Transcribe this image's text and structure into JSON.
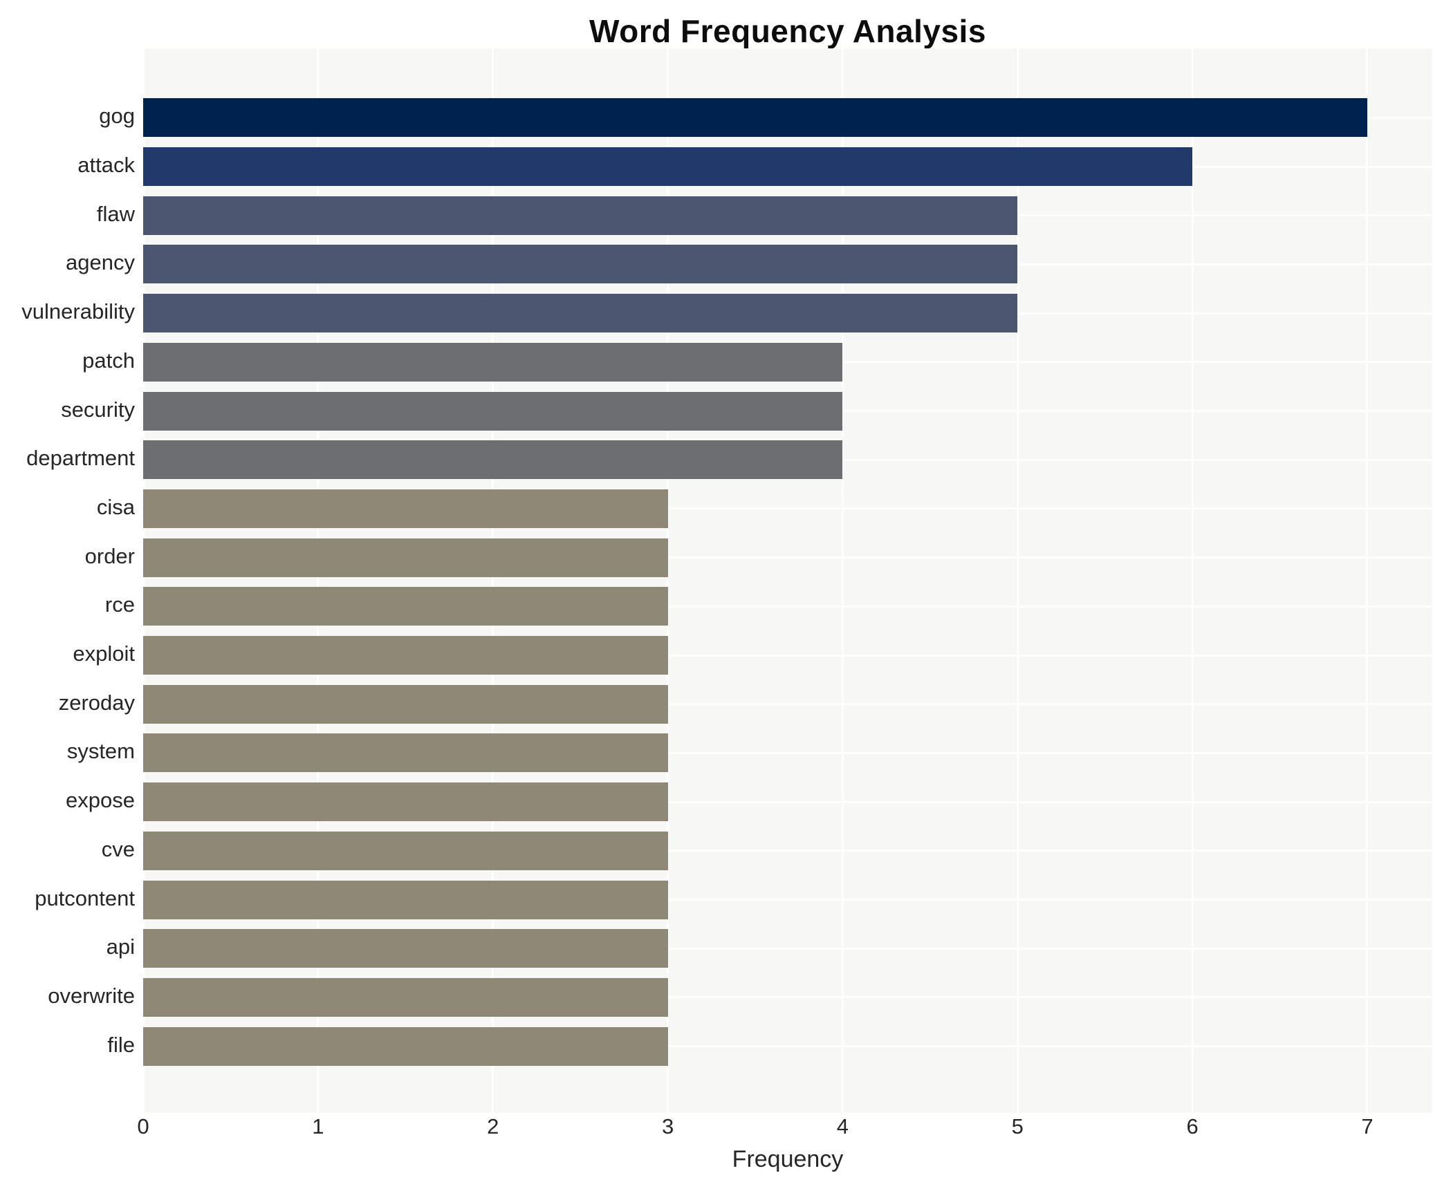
{
  "chart_data": {
    "type": "bar",
    "orientation": "horizontal",
    "title": "Word Frequency Analysis",
    "xlabel": "Frequency",
    "ylabel": "",
    "categories": [
      "gog",
      "attack",
      "flaw",
      "agency",
      "vulnerability",
      "patch",
      "security",
      "department",
      "cisa",
      "order",
      "rce",
      "exploit",
      "zeroday",
      "system",
      "expose",
      "cve",
      "putcontent",
      "api",
      "overwrite",
      "file"
    ],
    "values": [
      7,
      6,
      5,
      5,
      5,
      4,
      4,
      4,
      3,
      3,
      3,
      3,
      3,
      3,
      3,
      3,
      3,
      3,
      3,
      3
    ],
    "xlim": [
      0,
      7.37
    ],
    "xticks": [
      0,
      1,
      2,
      3,
      4,
      5,
      6,
      7
    ],
    "grid": "white gridlines on light gray panel, vertical at integer ticks and horizontal at each bar row",
    "legend_position": "none",
    "colors": {
      "value_colors": {
        "7": "#00224e",
        "6": "#22396b",
        "5": "#4d5670",
        "4": "#6c6e72",
        "3": "#8e8877"
      },
      "plot_background": "#f7f7f5",
      "figure_background": "#ffffff",
      "gridline": "#ffffff",
      "tick_text": "#262626",
      "title_text": "#0d0d0d"
    }
  }
}
